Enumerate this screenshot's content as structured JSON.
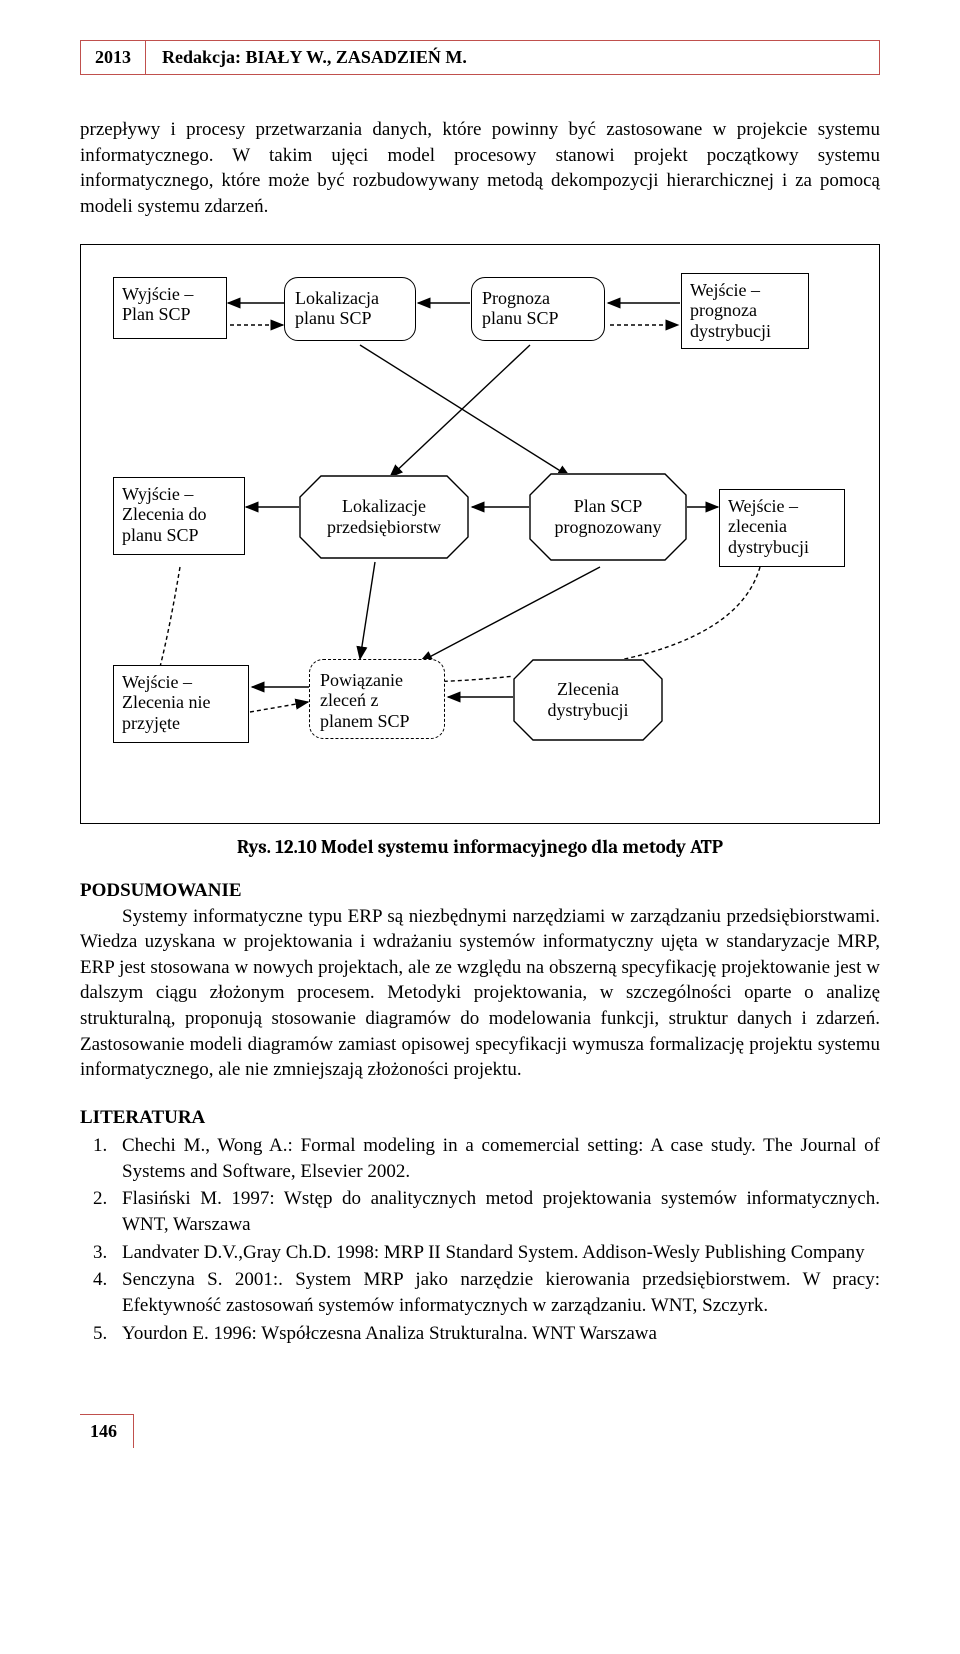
{
  "header": {
    "year": "2013",
    "redakcja": "Redakcja: BIAŁY W., ZASADZIEŃ M."
  },
  "para1": "przepływy i procesy przetwarzania danych, które powinny być zastosowane w projekcie systemu informatycznego. W takim ujęci model procesowy stanowi projekt początkowy systemu informatycznego, które może być rozbudowywany metodą dekompozycji hierarchicznej i za pomocą modeli systemu zdarzeń.",
  "diagram": {
    "nodes": {
      "n1": "Wyjście –\nPlan SCP",
      "n2": "Lokalizacja\nplanu SCP",
      "n3": "Prognoza\nplanu SCP",
      "n4": "Wejście –\nprognoza\ndystrybucji",
      "n5": "Wyjście –\nZlecenia do\nplanu SCP",
      "n6": "Lokalizacje\nprzedsiębiorstw",
      "n7": "Plan SCP\nprognozowany",
      "n8": "Wejście –\nzlecenia\ndystrybucji",
      "n9": "Wejście –\nZlecenia nie\nprzyjęte",
      "n10": "Powiązanie\nzleceń z\nplanem SCP",
      "n11": "Zlecenia\ndystrybucji"
    },
    "colors": {
      "stroke": "#000000",
      "background": "#ffffff"
    }
  },
  "caption": "Rys. 12.10 Model systemu informacyjnego dla metody ATP",
  "podsumowanie_title": "PODSUMOWANIE",
  "podsumowanie_text": "Systemy informatyczne typu ERP są niezbędnymi narzędziami w zarządzaniu przedsiębiorstwami. Wiedza uzyskana w projektowania i wdrażaniu systemów informatyczny ujęta w standaryzacje MRP, ERP jest stosowana w nowych projektach, ale ze względu na obszerną specyfikację projektowanie jest w dalszym ciągu złożonym procesem. Metodyki projektowania, w szczególności oparte o analizę strukturalną, proponują stosowanie diagramów do modelowania funkcji, struktur danych i zdarzeń. Zastosowanie modeli diagramów zamiast opisowej specyfikacji wymusza formalizację projektu systemu informatycznego, ale nie zmniejszają złożoności projektu.",
  "literatura_title": "LITERATURA",
  "literatura": [
    "Chechi M., Wong A.: Formal modeling in a comemercial setting: A case study. The Journal of Systems and Software, Elsevier 2002.",
    "Flasiński M. 1997: Wstęp do analitycznych metod projektowania systemów informatycznych. WNT, Warszawa",
    "Landvater D.V.,Gray Ch.D. 1998: MRP II Standard System. Addison-Wesly Publishing Company",
    "Senczyna S. 2001:. System MRP jako narzędzie kierowania przedsiębiorstwem. W pracy: Efektywność zastosowań systemów informatycznych w zarządzaniu. WNT, Szczyrk.",
    "Yourdon E. 1996: Współczesna Analiza Strukturalna. WNT Warszawa"
  ],
  "page_number": "146"
}
